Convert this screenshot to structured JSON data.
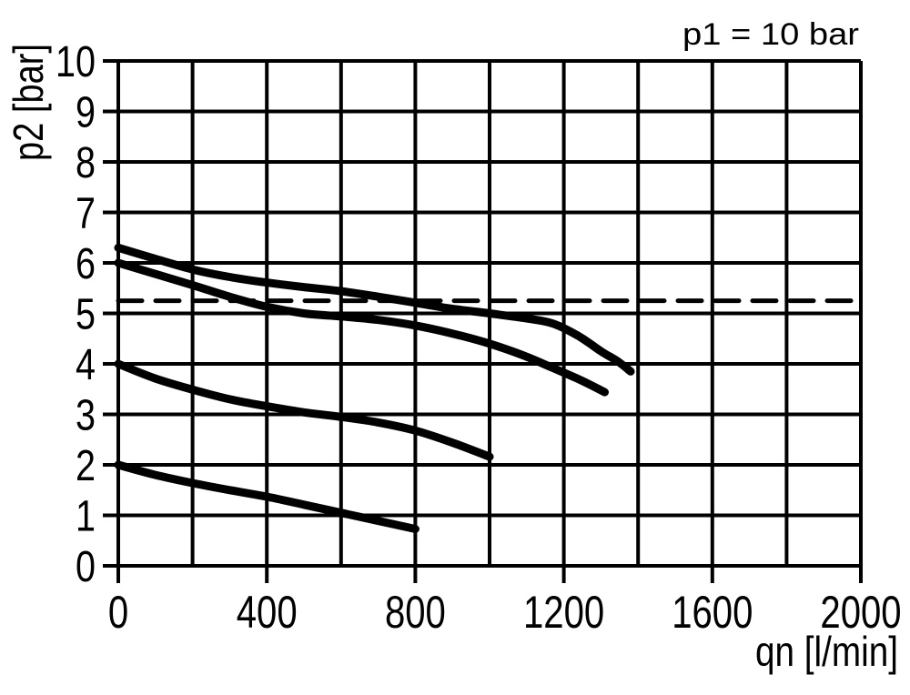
{
  "chart_data": {
    "type": "line",
    "title": "p1 = 10 bar",
    "xlabel": "qn [l/min]",
    "ylabel": "p2 [bar]",
    "xlim": [
      0,
      2000
    ],
    "ylim": [
      0,
      10
    ],
    "x_ticks": [
      0,
      400,
      800,
      1200,
      1600,
      2000
    ],
    "y_ticks": [
      0,
      1,
      2,
      3,
      4,
      5,
      6,
      7,
      8,
      9,
      10
    ],
    "x_grid_step": 200,
    "y_grid_step": 1,
    "grid": true,
    "legend": "none",
    "background_color": "#ffffff",
    "line_color": "#000000",
    "series": [
      {
        "name": "curve-1",
        "style": "solid",
        "points": [
          [
            0,
            6.3
          ],
          [
            100,
            6.08
          ],
          [
            200,
            5.87
          ],
          [
            300,
            5.72
          ],
          [
            400,
            5.61
          ],
          [
            500,
            5.52
          ],
          [
            600,
            5.44
          ],
          [
            700,
            5.33
          ],
          [
            800,
            5.21
          ],
          [
            900,
            5.09
          ],
          [
            1000,
            5.0
          ],
          [
            1100,
            4.9
          ],
          [
            1170,
            4.8
          ],
          [
            1240,
            4.55
          ],
          [
            1300,
            4.25
          ],
          [
            1345,
            4.05
          ],
          [
            1380,
            3.85
          ]
        ]
      },
      {
        "name": "curve-2",
        "style": "solid",
        "points": [
          [
            0,
            6.0
          ],
          [
            100,
            5.78
          ],
          [
            200,
            5.56
          ],
          [
            300,
            5.33
          ],
          [
            400,
            5.13
          ],
          [
            500,
            5.0
          ],
          [
            600,
            4.94
          ],
          [
            700,
            4.87
          ],
          [
            800,
            4.76
          ],
          [
            900,
            4.6
          ],
          [
            1000,
            4.4
          ],
          [
            1090,
            4.17
          ],
          [
            1170,
            3.92
          ],
          [
            1245,
            3.68
          ],
          [
            1310,
            3.44
          ]
        ]
      },
      {
        "name": "curve-3",
        "style": "solid",
        "points": [
          [
            0,
            4.0
          ],
          [
            100,
            3.71
          ],
          [
            200,
            3.49
          ],
          [
            300,
            3.3
          ],
          [
            400,
            3.16
          ],
          [
            500,
            3.04
          ],
          [
            600,
            2.95
          ],
          [
            700,
            2.84
          ],
          [
            800,
            2.68
          ],
          [
            900,
            2.44
          ],
          [
            1000,
            2.16
          ]
        ]
      },
      {
        "name": "curve-4",
        "style": "solid",
        "points": [
          [
            0,
            2.0
          ],
          [
            100,
            1.8
          ],
          [
            200,
            1.64
          ],
          [
            300,
            1.5
          ],
          [
            400,
            1.37
          ],
          [
            500,
            1.21
          ],
          [
            600,
            1.05
          ],
          [
            700,
            0.89
          ],
          [
            800,
            0.73
          ]
        ]
      },
      {
        "name": "reference-line",
        "style": "dashed",
        "points": [
          [
            0,
            5.25
          ],
          [
            2000,
            5.25
          ]
        ]
      }
    ]
  }
}
